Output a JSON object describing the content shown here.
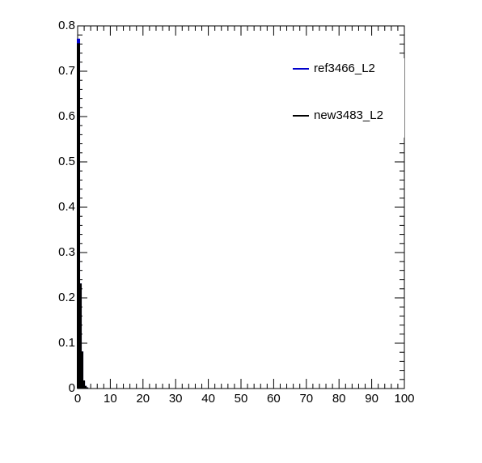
{
  "chart_data": {
    "type": "histogram",
    "bins": [
      0,
      0.5,
      1,
      1.5,
      2,
      2.5,
      3
    ],
    "series": [
      {
        "name": "ref3466_L2",
        "color": "#0000cc",
        "values": [
          0.77,
          0.23,
          0.08,
          0.015,
          0.004,
          0.001
        ]
      },
      {
        "name": "new3483_L2",
        "color": "#000000",
        "values": [
          0.76,
          0.23,
          0.08,
          0.016,
          0.004,
          0.001
        ]
      }
    ],
    "xlim": [
      0,
      100
    ],
    "xticks": [
      0,
      10,
      20,
      30,
      40,
      50,
      60,
      70,
      80,
      90,
      100
    ],
    "ylim": [
      0,
      0.8
    ],
    "yticks": [
      0,
      0.1,
      0.2,
      0.3,
      0.4,
      0.5,
      0.6,
      0.7,
      0.8
    ],
    "legend": "top-right"
  }
}
